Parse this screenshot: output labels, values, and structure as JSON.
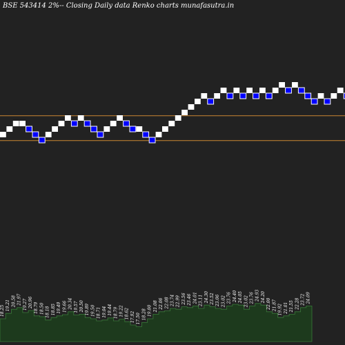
{
  "title": "BSE 543414  2%-- Closing Daily data  Renko  charts munafasutra.in",
  "colors": {
    "background": "#222222",
    "up_brick": "#ffffff",
    "down_brick": "#0000ff",
    "down_brick_border": "#ffffff",
    "hline": "#cc8833",
    "volume_fill": "#1d3a1d",
    "volume_stroke": "#3a7a3a"
  },
  "chart_data": {
    "type": "renko",
    "title": "BSE 543414  2%-- Closing Daily data  Renko  charts munafasutra.in",
    "bricks": [
      {
        "level": 0,
        "dir": "up"
      },
      {
        "level": 1,
        "dir": "up"
      },
      {
        "level": 2,
        "dir": "up"
      },
      {
        "level": 2,
        "dir": "up"
      },
      {
        "level": 1,
        "dir": "down"
      },
      {
        "level": 0,
        "dir": "down"
      },
      {
        "level": -1,
        "dir": "down"
      },
      {
        "level": 0,
        "dir": "up"
      },
      {
        "level": 1,
        "dir": "up"
      },
      {
        "level": 2,
        "dir": "up"
      },
      {
        "level": 3,
        "dir": "up"
      },
      {
        "level": 2,
        "dir": "down"
      },
      {
        "level": 3,
        "dir": "up"
      },
      {
        "level": 2,
        "dir": "down"
      },
      {
        "level": 1,
        "dir": "down"
      },
      {
        "level": 0,
        "dir": "down"
      },
      {
        "level": 1,
        "dir": "up"
      },
      {
        "level": 2,
        "dir": "up"
      },
      {
        "level": 3,
        "dir": "up"
      },
      {
        "level": 2,
        "dir": "down"
      },
      {
        "level": 1,
        "dir": "down"
      },
      {
        "level": 1,
        "dir": "up"
      },
      {
        "level": 0,
        "dir": "down"
      },
      {
        "level": -1,
        "dir": "down"
      },
      {
        "level": 0,
        "dir": "up"
      },
      {
        "level": 1,
        "dir": "up"
      },
      {
        "level": 2,
        "dir": "up"
      },
      {
        "level": 3,
        "dir": "up"
      },
      {
        "level": 4,
        "dir": "up"
      },
      {
        "level": 5,
        "dir": "up"
      },
      {
        "level": 6,
        "dir": "up"
      },
      {
        "level": 7,
        "dir": "up"
      },
      {
        "level": 6,
        "dir": "down"
      },
      {
        "level": 7,
        "dir": "up"
      },
      {
        "level": 8,
        "dir": "up"
      },
      {
        "level": 7,
        "dir": "down"
      },
      {
        "level": 8,
        "dir": "up"
      },
      {
        "level": 7,
        "dir": "down"
      },
      {
        "level": 8,
        "dir": "up"
      },
      {
        "level": 7,
        "dir": "down"
      },
      {
        "level": 8,
        "dir": "up"
      },
      {
        "level": 7,
        "dir": "down"
      },
      {
        "level": 8,
        "dir": "up"
      },
      {
        "level": 9,
        "dir": "up"
      },
      {
        "level": 8,
        "dir": "down"
      },
      {
        "level": 9,
        "dir": "up"
      },
      {
        "level": 8,
        "dir": "down"
      },
      {
        "level": 7,
        "dir": "down"
      },
      {
        "level": 6,
        "dir": "down"
      },
      {
        "level": 7,
        "dir": "up"
      },
      {
        "level": 6,
        "dir": "down"
      },
      {
        "level": 7,
        "dir": "up"
      },
      {
        "level": 8,
        "dir": "up"
      },
      {
        "level": 7,
        "dir": "down"
      },
      {
        "level": 8,
        "dir": "up"
      }
    ],
    "hlines_level": [
      3.9,
      -0.6
    ],
    "volume_labels": [
      "18.25",
      "19.21",
      "20.58",
      "21.97",
      "19.27",
      "20.96",
      "18.79",
      "18.50",
      "18.18",
      "18.85",
      "19.49",
      "19.66",
      "20.34",
      "19.57",
      "20.50",
      "19.89",
      "19.50",
      "18.71",
      "19.04",
      "19.44",
      "18.79",
      "19.22",
      "18.62",
      "17.92",
      "17.50",
      "18.28",
      "19.00",
      "21.08",
      "22.06",
      "22.08",
      "23.74",
      "22.99",
      "23.56",
      "23.46",
      "24.01",
      "23.11",
      "24.30",
      "23.52",
      "23.06",
      "23.02",
      "23.76",
      "24.40",
      "24.05",
      "23.02",
      "23.76",
      "24.93",
      "24.20",
      "22.00",
      "21.87",
      "19.92",
      "21.01",
      "21.55",
      "22.28",
      "23.72",
      "24.09"
    ],
    "volume_levels": [
      0.55,
      0.68,
      0.78,
      0.82,
      0.7,
      0.75,
      0.62,
      0.6,
      0.52,
      0.58,
      0.62,
      0.65,
      0.72,
      0.64,
      0.66,
      0.58,
      0.55,
      0.5,
      0.52,
      0.57,
      0.5,
      0.54,
      0.48,
      0.4,
      0.36,
      0.46,
      0.55,
      0.66,
      0.72,
      0.74,
      0.8,
      0.78,
      0.84,
      0.82,
      0.86,
      0.8,
      0.88,
      0.84,
      0.8,
      0.78,
      0.86,
      0.9,
      0.88,
      0.78,
      0.86,
      0.92,
      0.88,
      0.72,
      0.68,
      0.58,
      0.62,
      0.66,
      0.72,
      0.82,
      0.86
    ]
  }
}
